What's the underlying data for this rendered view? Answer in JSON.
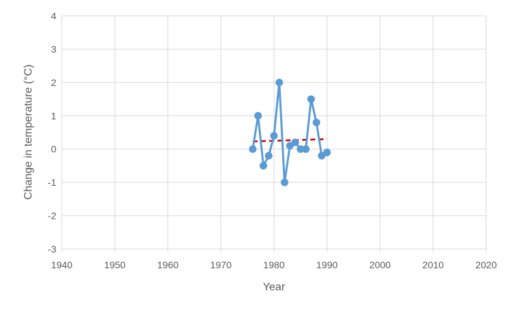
{
  "chart_data": {
    "type": "scatter",
    "title": "",
    "xlabel": "Year",
    "ylabel": "Change in temperature (°C)",
    "xlim": [
      1940,
      2020
    ],
    "ylim": [
      -3,
      4
    ],
    "xticks": [
      1940,
      1950,
      1960,
      1970,
      1980,
      1990,
      2000,
      2010,
      2020
    ],
    "yticks": [
      -3,
      -2,
      -1,
      0,
      1,
      2,
      3,
      4
    ],
    "grid": true,
    "legend": "none",
    "colors": {
      "series": "#5b9bd5",
      "trend": "#c00000",
      "grid": "#d9d9d9",
      "text": "#595959"
    },
    "series": [
      {
        "x": [
          1976,
          1977,
          1978,
          1979,
          1980,
          1981,
          1982,
          1983,
          1984,
          1985,
          1986,
          1987,
          1988,
          1989,
          1990
        ],
        "y": [
          0.0,
          1.0,
          -0.5,
          -0.2,
          0.4,
          2.0,
          -1.0,
          0.1,
          0.2,
          0.0,
          0.0,
          1.5,
          0.8,
          -0.2,
          -0.1
        ],
        "style": "line-markers"
      }
    ],
    "trendline": {
      "type": "linear",
      "x": [
        1976,
        1990
      ],
      "y": [
        0.23,
        0.3
      ],
      "style": "dashed"
    }
  }
}
